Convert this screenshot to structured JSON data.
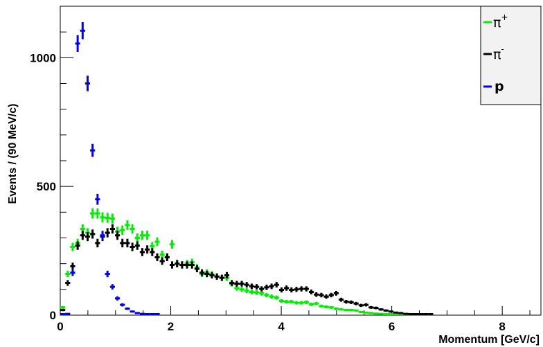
{
  "chart_data": {
    "type": "scatter",
    "style": "histogram-with-error-bars",
    "title": "",
    "xlabel": "Momentum [GeV/c]",
    "ylabel": "Events / (90 MeV/c)",
    "xlim": [
      0,
      8.7
    ],
    "ylim": [
      0,
      1200
    ],
    "xticks": [
      0,
      2,
      4,
      6,
      8
    ],
    "xtick_labels": [
      "0",
      "2",
      "4",
      "6",
      "8"
    ],
    "yticks": [
      0,
      500,
      1000
    ],
    "ytick_labels": [
      "0",
      "500",
      "1000"
    ],
    "grid": false,
    "legend_position": "top-right",
    "series": [
      {
        "name": "π+",
        "label_base": "π",
        "label_sup": "+",
        "color": "#00ee00",
        "x": [
          0.045,
          0.135,
          0.225,
          0.315,
          0.405,
          0.495,
          0.585,
          0.675,
          0.765,
          0.855,
          0.945,
          1.035,
          1.125,
          1.215,
          1.305,
          1.395,
          1.485,
          1.575,
          1.665,
          1.755,
          1.845,
          1.935,
          2.025,
          2.115,
          2.205,
          2.295,
          2.385,
          2.475,
          2.565,
          2.655,
          2.745,
          2.835,
          2.925,
          3.015,
          3.105,
          3.195,
          3.285,
          3.375,
          3.465,
          3.555,
          3.645,
          3.735,
          3.825,
          3.915,
          4.005,
          4.095,
          4.185,
          4.275,
          4.365,
          4.455,
          4.545,
          4.635,
          4.725,
          4.815,
          4.905,
          4.995,
          5.085,
          5.175,
          5.265,
          5.355,
          5.445,
          5.535,
          5.625,
          5.715,
          5.805,
          5.895,
          5.985,
          6.075,
          6.165,
          6.255,
          6.345,
          6.435,
          6.525
        ],
        "y": [
          30,
          160,
          265,
          280,
          335,
          320,
          395,
          395,
          380,
          378,
          375,
          325,
          330,
          350,
          335,
          300,
          310,
          310,
          268,
          285,
          235,
          225,
          275,
          200,
          195,
          200,
          205,
          185,
          160,
          165,
          158,
          150,
          145,
          145,
          122,
          105,
          100,
          95,
          90,
          88,
          85,
          78,
          72,
          68,
          55,
          52,
          52,
          48,
          48,
          50,
          42,
          45,
          35,
          32,
          30,
          25,
          22,
          20,
          20,
          18,
          12,
          10,
          8,
          6,
          5,
          4,
          3,
          2,
          2,
          1,
          1,
          1,
          0
        ]
      },
      {
        "name": "π-",
        "label_base": "π",
        "label_sup": "-",
        "color": "#000000",
        "x": [
          0.045,
          0.135,
          0.225,
          0.315,
          0.405,
          0.495,
          0.585,
          0.675,
          0.765,
          0.855,
          0.945,
          1.035,
          1.125,
          1.215,
          1.305,
          1.395,
          1.485,
          1.575,
          1.665,
          1.755,
          1.845,
          1.935,
          2.025,
          2.115,
          2.205,
          2.295,
          2.385,
          2.475,
          2.565,
          2.655,
          2.745,
          2.835,
          2.925,
          3.015,
          3.105,
          3.195,
          3.285,
          3.375,
          3.465,
          3.555,
          3.645,
          3.735,
          3.825,
          3.915,
          4.005,
          4.095,
          4.185,
          4.275,
          4.365,
          4.455,
          4.545,
          4.635,
          4.725,
          4.815,
          4.905,
          4.995,
          5.085,
          5.175,
          5.265,
          5.355,
          5.445,
          5.535,
          5.625,
          5.715,
          5.805,
          5.895,
          5.985,
          6.075,
          6.165,
          6.255,
          6.345,
          6.435,
          6.525,
          6.615,
          6.705
        ],
        "y": [
          20,
          125,
          190,
          270,
          310,
          305,
          315,
          280,
          305,
          320,
          335,
          310,
          280,
          280,
          265,
          270,
          245,
          255,
          245,
          225,
          210,
          225,
          195,
          200,
          195,
          195,
          195,
          180,
          165,
          160,
          155,
          150,
          145,
          155,
          125,
          122,
          122,
          118,
          112,
          110,
          102,
          108,
          112,
          118,
          98,
          105,
          98,
          100,
          102,
          102,
          90,
          80,
          78,
          72,
          78,
          85,
          60,
          52,
          50,
          45,
          38,
          40,
          30,
          28,
          22,
          18,
          14,
          10,
          8,
          5,
          3,
          2,
          1,
          1,
          1
        ]
      },
      {
        "name": "p",
        "color": "#0000ee",
        "x": [
          0.045,
          0.135,
          0.225,
          0.315,
          0.405,
          0.495,
          0.585,
          0.675,
          0.765,
          0.855,
          0.945,
          1.035,
          1.125,
          1.215,
          1.305,
          1.395,
          1.485,
          1.575,
          1.665,
          1.755
        ],
        "y": [
          0,
          5,
          165,
          1055,
          1105,
          900,
          640,
          450,
          310,
          160,
          110,
          65,
          40,
          25,
          14,
          8,
          5,
          3,
          2,
          1
        ]
      }
    ]
  }
}
